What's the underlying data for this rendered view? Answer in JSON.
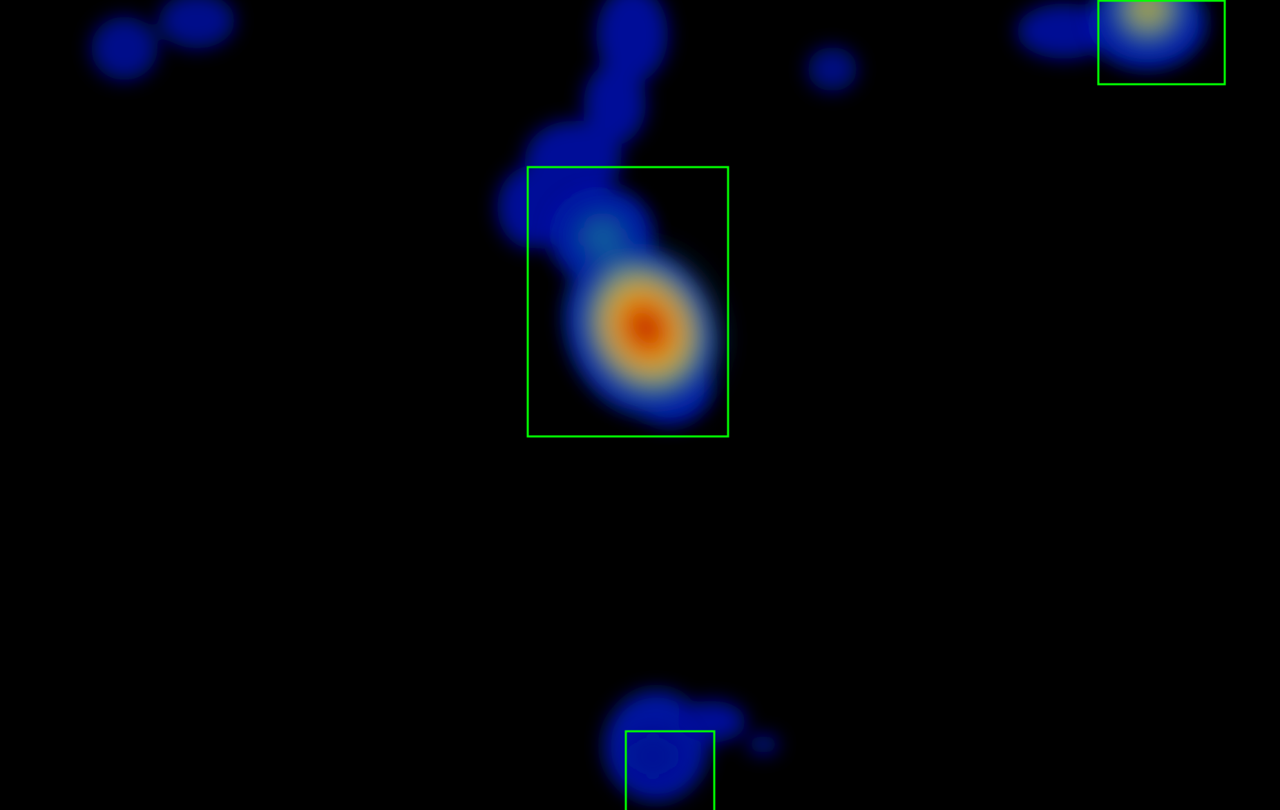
{
  "image": {
    "background_color": "#000000",
    "colormap": "jet",
    "box_color": "#00ff00"
  },
  "heatmap": {
    "blobs": [
      {
        "name": "top-left-blob-a",
        "intensity": 0.2
      },
      {
        "name": "top-left-blob-b",
        "intensity": 0.18
      },
      {
        "name": "top-center-small-blob",
        "intensity": 0.12
      },
      {
        "name": "upper-center-streak",
        "intensity": 0.25
      },
      {
        "name": "center-secondary-peak",
        "intensity": 0.45
      },
      {
        "name": "center-main-peak",
        "intensity": 1.0
      },
      {
        "name": "top-right-peak",
        "intensity": 0.6
      },
      {
        "name": "bottom-center-blob",
        "intensity": 0.25
      }
    ],
    "detection_boxes": [
      {
        "name": "detection-box-center"
      },
      {
        "name": "detection-box-top-right"
      },
      {
        "name": "detection-box-bottom"
      }
    ]
  }
}
